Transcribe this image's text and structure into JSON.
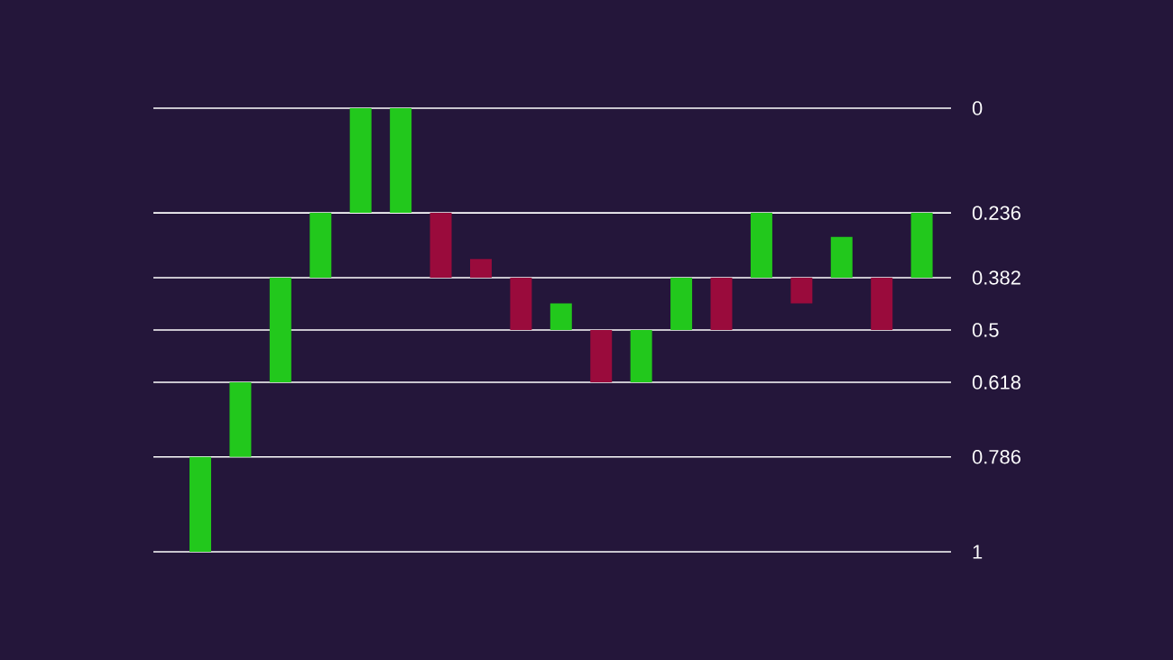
{
  "chart_data": {
    "type": "bar",
    "categories": [
      null,
      null,
      null,
      null,
      null,
      null,
      null,
      null,
      null,
      null,
      null,
      null,
      null,
      null,
      null,
      null,
      null,
      null,
      null
    ],
    "base": [
      0.786,
      0.618,
      0.382,
      0.236,
      0,
      0,
      0.236,
      0.34,
      0.382,
      0.44,
      0.5,
      0.5,
      0.382,
      0.382,
      0.236,
      0.382,
      0.29,
      0.382,
      0.236
    ],
    "values": [
      0.214,
      0.168,
      0.236,
      0.146,
      0.236,
      0.236,
      0.146,
      0.042,
      0.118,
      0.06,
      0.118,
      0.118,
      0.118,
      0.118,
      0.146,
      0.058,
      0.092,
      0.118,
      0.146
    ],
    "colors": [
      "#22c81c",
      "#22c81c",
      "#22c81c",
      "#22c81c",
      "#22c81c",
      "#22c81c",
      "#9a0b3c",
      "#9a0b3c",
      "#9a0b3c",
      "#22c81c",
      "#9a0b3c",
      "#22c81c",
      "#22c81c",
      "#9a0b3c",
      "#22c81c",
      "#9a0b3c",
      "#22c81c",
      "#9a0b3c",
      "#22c81c"
    ],
    "ylim": [
      1,
      0
    ],
    "yticks": [
      0,
      0.236,
      0.382,
      0.5,
      0.618,
      0.786,
      1
    ],
    "grid": "y",
    "tick_labels": "y"
  }
}
